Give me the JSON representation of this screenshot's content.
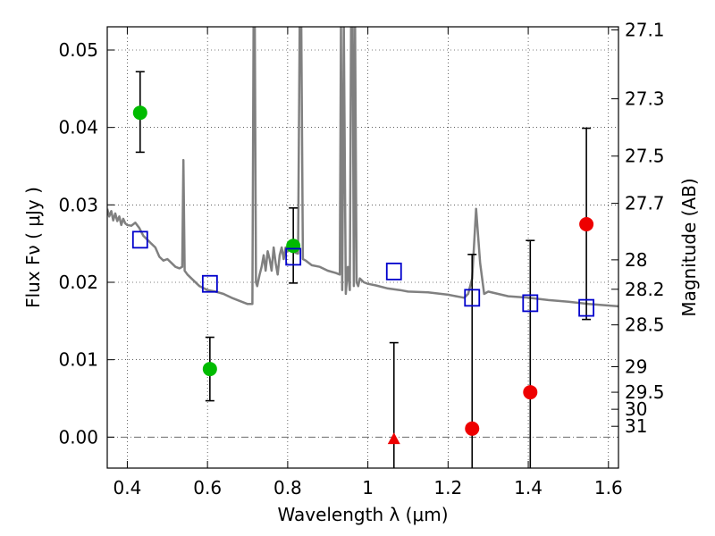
{
  "chart_data": {
    "type": "scatter",
    "xlabel": "Wavelength  λ (μm)",
    "ylabel": "Flux  Fν  ( μJy )",
    "ylabel_right": "Magnitude (AB)",
    "xlim": [
      0.35,
      1.625
    ],
    "ylim": [
      -0.004,
      0.053
    ],
    "grid": true,
    "x_ticks": [
      {
        "value": 0.4,
        "label": "0.4"
      },
      {
        "value": 0.6,
        "label": "0.6"
      },
      {
        "value": 0.8,
        "label": "0.8"
      },
      {
        "value": 1.0,
        "label": "1"
      },
      {
        "value": 1.2,
        "label": "1.2"
      },
      {
        "value": 1.4,
        "label": "1.4"
      },
      {
        "value": 1.6,
        "label": "1.6"
      }
    ],
    "y_ticks": [
      {
        "value": 0.0,
        "label": "0.00"
      },
      {
        "value": 0.01,
        "label": "0.01"
      },
      {
        "value": 0.02,
        "label": "0.02"
      },
      {
        "value": 0.03,
        "label": "0.03"
      },
      {
        "value": 0.04,
        "label": "0.04"
      },
      {
        "value": 0.05,
        "label": "0.05"
      }
    ],
    "y_ticks_right": [
      {
        "flux": 0.0526,
        "label": "27.1"
      },
      {
        "flux": 0.0437,
        "label": "27.3"
      },
      {
        "flux": 0.0363,
        "label": "27.5"
      },
      {
        "flux": 0.0302,
        "label": "27.7"
      },
      {
        "flux": 0.0229,
        "label": "28"
      },
      {
        "flux": 0.0191,
        "label": "28.2"
      },
      {
        "flux": 0.0145,
        "label": "28.5"
      },
      {
        "flux": 0.0091,
        "label": "29"
      },
      {
        "flux": 0.0058,
        "label": "29.5"
      },
      {
        "flux": 0.0036,
        "label": "30"
      },
      {
        "flux": 0.0014,
        "label": "31"
      }
    ],
    "series": [
      {
        "marker": "circle",
        "color": "#00bb00",
        "points": [
          {
            "x": 0.432,
            "y": 0.0419,
            "yerr_low": 0.0368,
            "yerr_high": 0.0472
          },
          {
            "x": 0.606,
            "y": 0.0088,
            "yerr_low": 0.0047,
            "yerr_high": 0.0129
          },
          {
            "x": 0.814,
            "y": 0.0247,
            "yerr_low": 0.0199,
            "yerr_high": 0.0296
          }
        ]
      },
      {
        "marker": "circle",
        "color": "#ee0000",
        "points": [
          {
            "x": 1.26,
            "y": 0.0011,
            "yerr_low": null,
            "yerr_high": 0.0236
          },
          {
            "x": 1.405,
            "y": 0.0058,
            "yerr_low": null,
            "yerr_high": 0.0254
          },
          {
            "x": 1.545,
            "y": 0.0275,
            "yerr_low": 0.0152,
            "yerr_high": 0.0399
          }
        ]
      },
      {
        "marker": "triangle",
        "color": "#ee0000",
        "points": [
          {
            "x": 1.065,
            "y": -0.0002,
            "yerr_low": null,
            "yerr_high": 0.0122
          }
        ]
      },
      {
        "marker": "square-open",
        "color": "#0000cc",
        "points": [
          {
            "x": 0.432,
            "y": 0.0255
          },
          {
            "x": 0.606,
            "y": 0.0198
          },
          {
            "x": 0.814,
            "y": 0.0233
          },
          {
            "x": 1.065,
            "y": 0.0214
          },
          {
            "x": 1.26,
            "y": 0.018
          },
          {
            "x": 1.405,
            "y": 0.0173
          },
          {
            "x": 1.545,
            "y": 0.0167
          }
        ]
      }
    ],
    "model_spectrum": {
      "color": "#808080",
      "x": [
        0.35,
        0.355,
        0.36,
        0.365,
        0.37,
        0.375,
        0.38,
        0.385,
        0.39,
        0.395,
        0.4,
        0.41,
        0.42,
        0.43,
        0.44,
        0.45,
        0.46,
        0.47,
        0.48,
        0.49,
        0.5,
        0.51,
        0.52,
        0.53,
        0.537,
        0.54,
        0.543,
        0.55,
        0.56,
        0.58,
        0.6,
        0.62,
        0.64,
        0.66,
        0.68,
        0.7,
        0.712,
        0.715,
        0.718,
        0.721,
        0.724,
        0.73,
        0.735,
        0.74,
        0.745,
        0.75,
        0.755,
        0.76,
        0.765,
        0.77,
        0.775,
        0.78,
        0.785,
        0.79,
        0.795,
        0.8,
        0.805,
        0.81,
        0.815,
        0.82,
        0.826,
        0.83,
        0.834,
        0.838,
        0.845,
        0.86,
        0.88,
        0.9,
        0.92,
        0.93,
        0.933,
        0.936,
        0.94,
        0.945,
        0.95,
        0.955,
        0.958,
        0.962,
        0.965,
        0.968,
        0.972,
        0.976,
        0.98,
        0.99,
        1.0,
        1.02,
        1.05,
        1.08,
        1.1,
        1.15,
        1.2,
        1.24,
        1.25,
        1.26,
        1.27,
        1.28,
        1.29,
        1.3,
        1.35,
        1.4,
        1.45,
        1.5,
        1.55,
        1.6,
        1.625
      ],
      "y": [
        0.0295,
        0.0285,
        0.0292,
        0.028,
        0.0289,
        0.0279,
        0.0285,
        0.0274,
        0.0282,
        0.0276,
        0.0274,
        0.0273,
        0.0277,
        0.027,
        0.026,
        0.0255,
        0.025,
        0.0245,
        0.0233,
        0.0228,
        0.023,
        0.0225,
        0.022,
        0.0218,
        0.022,
        0.0358,
        0.0215,
        0.021,
        0.0205,
        0.0195,
        0.019,
        0.0188,
        0.0185,
        0.018,
        0.0176,
        0.0172,
        0.0172,
        0.053,
        0.053,
        0.02,
        0.0195,
        0.021,
        0.022,
        0.0235,
        0.0215,
        0.024,
        0.023,
        0.0215,
        0.0245,
        0.0225,
        0.021,
        0.0235,
        0.0245,
        0.023,
        0.0245,
        0.024,
        0.025,
        0.0245,
        0.024,
        0.0238,
        0.0237,
        0.053,
        0.053,
        0.023,
        0.0228,
        0.0222,
        0.022,
        0.0215,
        0.0212,
        0.021,
        0.053,
        0.019,
        0.053,
        0.0185,
        0.022,
        0.019,
        0.053,
        0.053,
        0.0195,
        0.053,
        0.02,
        0.0195,
        0.0205,
        0.02,
        0.0198,
        0.0196,
        0.0192,
        0.019,
        0.0188,
        0.0187,
        0.0184,
        0.018,
        0.0185,
        0.0205,
        0.0295,
        0.0225,
        0.0185,
        0.0188,
        0.0182,
        0.018,
        0.0177,
        0.0175,
        0.0172,
        0.017,
        0.0169
      ]
    }
  }
}
